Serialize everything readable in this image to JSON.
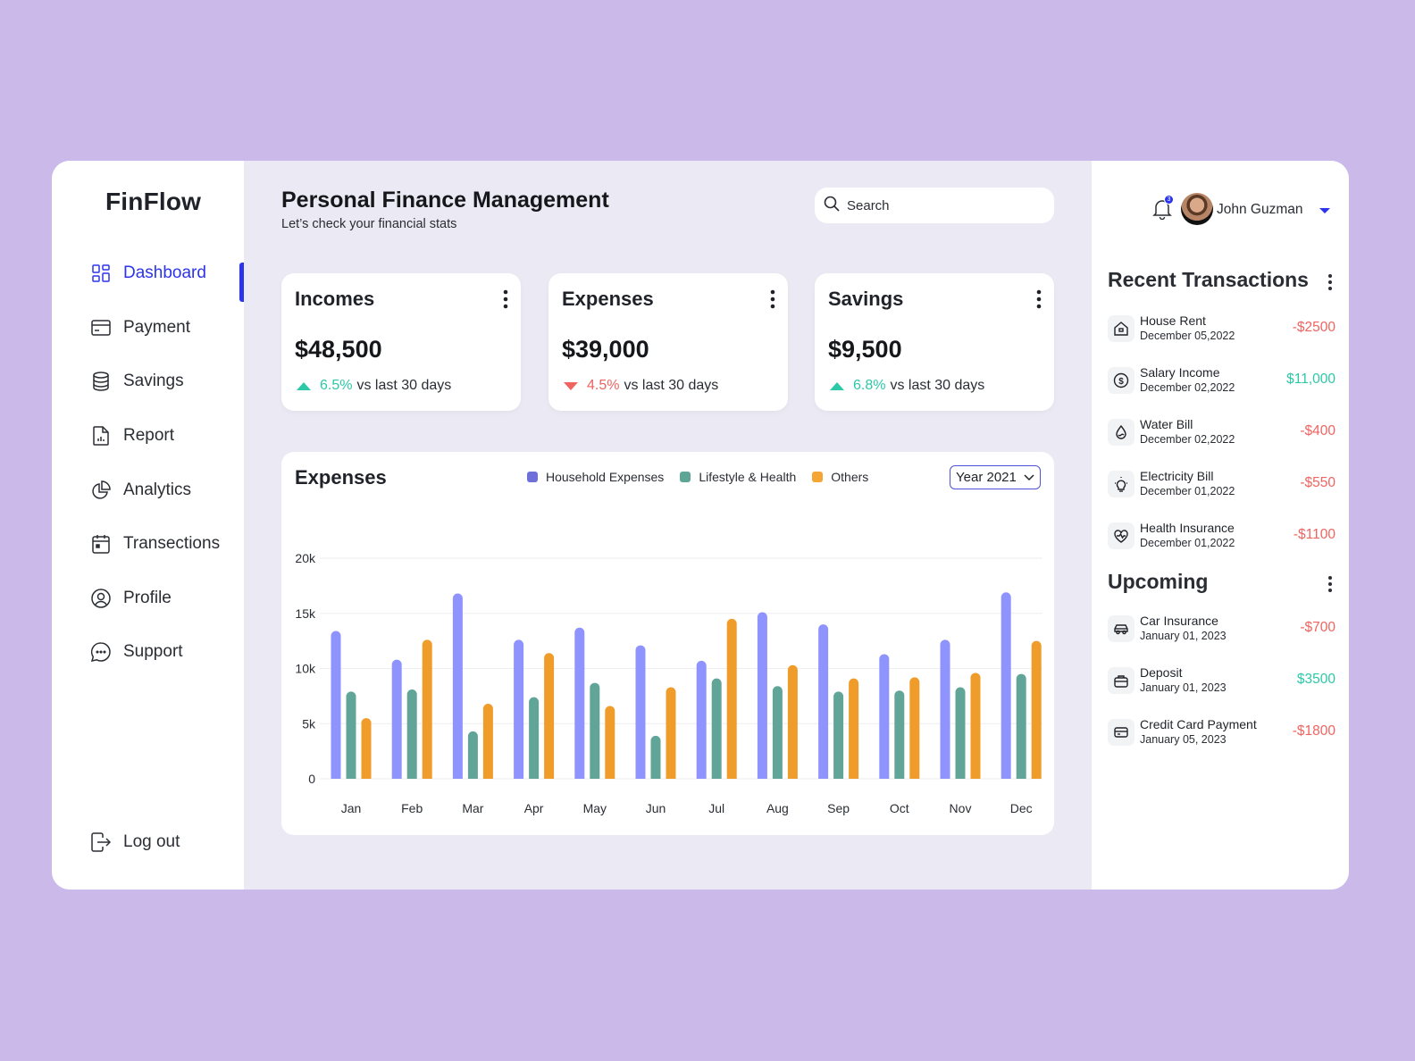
{
  "app": {
    "name": "FinFlow"
  },
  "sidebar": {
    "items": [
      {
        "label": "Dashboard",
        "icon": "dashboard-icon",
        "active": true
      },
      {
        "label": "Payment",
        "icon": "credit-card-icon"
      },
      {
        "label": "Savings",
        "icon": "database-icon"
      },
      {
        "label": "Report",
        "icon": "report-file-icon"
      },
      {
        "label": "Analytics",
        "icon": "pie-chart-icon"
      },
      {
        "label": "Transections",
        "icon": "calendar-icon"
      },
      {
        "label": "Profile",
        "icon": "user-circle-icon"
      },
      {
        "label": "Support",
        "icon": "chat-bubble-icon"
      }
    ],
    "logout_label": "Log out"
  },
  "header": {
    "title": "Personal Finance Management",
    "subtitle": "Let’s check your financial stats",
    "search_placeholder": "Search"
  },
  "stats": [
    {
      "title": "Incomes",
      "value": "$48,500",
      "delta": "6.5%",
      "direction": "up",
      "suffix": "vs last 30 days"
    },
    {
      "title": "Expenses",
      "value": "$39,000",
      "delta": "4.5%",
      "direction": "down",
      "suffix": "vs last 30 days"
    },
    {
      "title": "Savings",
      "value": "$9,500",
      "delta": "6.8%",
      "direction": "up",
      "suffix": "vs last 30 days"
    }
  ],
  "expenses_chart": {
    "title": "Expenses",
    "year_select": "Year 2021",
    "legend": [
      {
        "label": "Household Expenses",
        "color": "#6e6fd8"
      },
      {
        "label": "Lifestyle & Health",
        "color": "#5fa596"
      },
      {
        "label": "Others",
        "color": "#f5a533"
      }
    ]
  },
  "chart_data": {
    "type": "bar",
    "title": "Expenses",
    "xlabel": "",
    "ylabel": "",
    "ylim": [
      0,
      20000
    ],
    "yticks": [
      "0",
      "5k",
      "10k",
      "15k",
      "20k"
    ],
    "grid": true,
    "legend_position": "top",
    "categories": [
      "Jan",
      "Feb",
      "Mar",
      "Apr",
      "May",
      "Jun",
      "Jul",
      "Aug",
      "Sep",
      "Oct",
      "Nov",
      "Dec"
    ],
    "series": [
      {
        "name": "Household Expenses",
        "color": "#8f93fd",
        "values": [
          13400,
          10800,
          16800,
          12600,
          13700,
          12100,
          10700,
          15100,
          14000,
          11300,
          12600,
          16900
        ]
      },
      {
        "name": "Lifestyle & Health",
        "color": "#60a597",
        "values": [
          7900,
          8100,
          4300,
          7400,
          8700,
          3900,
          9100,
          8400,
          7900,
          8000,
          8300,
          9500
        ]
      },
      {
        "name": "Others",
        "color": "#f09c2a",
        "values": [
          5500,
          12600,
          6800,
          11400,
          6600,
          8300,
          14500,
          10300,
          9100,
          9200,
          9600,
          12500
        ]
      }
    ]
  },
  "user": {
    "name": "John  Guzman",
    "notifications": "3"
  },
  "recent_transactions": {
    "title": "Recent Transactions",
    "items": [
      {
        "name": "House Rent",
        "date": "December 05,2022",
        "amount": "-$2500",
        "type": "neg",
        "icon": "home-icon"
      },
      {
        "name": "Salary Income",
        "date": "December 02,2022",
        "amount": "$11,000",
        "type": "pos",
        "icon": "dollar-coin-icon"
      },
      {
        "name": "Water Bill",
        "date": "December 02,2022",
        "amount": "-$400",
        "type": "neg",
        "icon": "water-drop-icon"
      },
      {
        "name": "Electricity Bill",
        "date": "December 01,2022",
        "amount": "-$550",
        "type": "neg",
        "icon": "lightbulb-icon"
      },
      {
        "name": "Health Insurance",
        "date": "December 01,2022",
        "amount": "-$1100",
        "type": "neg",
        "icon": "heart-pulse-icon"
      }
    ]
  },
  "upcoming": {
    "title": "Upcoming",
    "items": [
      {
        "name": "Car Insurance",
        "date": "January 01, 2023",
        "amount": "-$700",
        "type": "neg",
        "icon": "car-icon"
      },
      {
        "name": "Deposit",
        "date": "January 01, 2023",
        "amount": "$3500",
        "type": "pos",
        "icon": "briefcase-icon"
      },
      {
        "name": "Credit Card Payment",
        "date": "January 05, 2023",
        "amount": "-$1800",
        "type": "neg",
        "icon": "credit-card-icon"
      }
    ]
  },
  "colors": {
    "accent": "#2b34ea",
    "positive": "#2cc8a7",
    "negative": "#ef6461",
    "background": "#cbb9e9",
    "main_bg": "#ebe9f3"
  }
}
